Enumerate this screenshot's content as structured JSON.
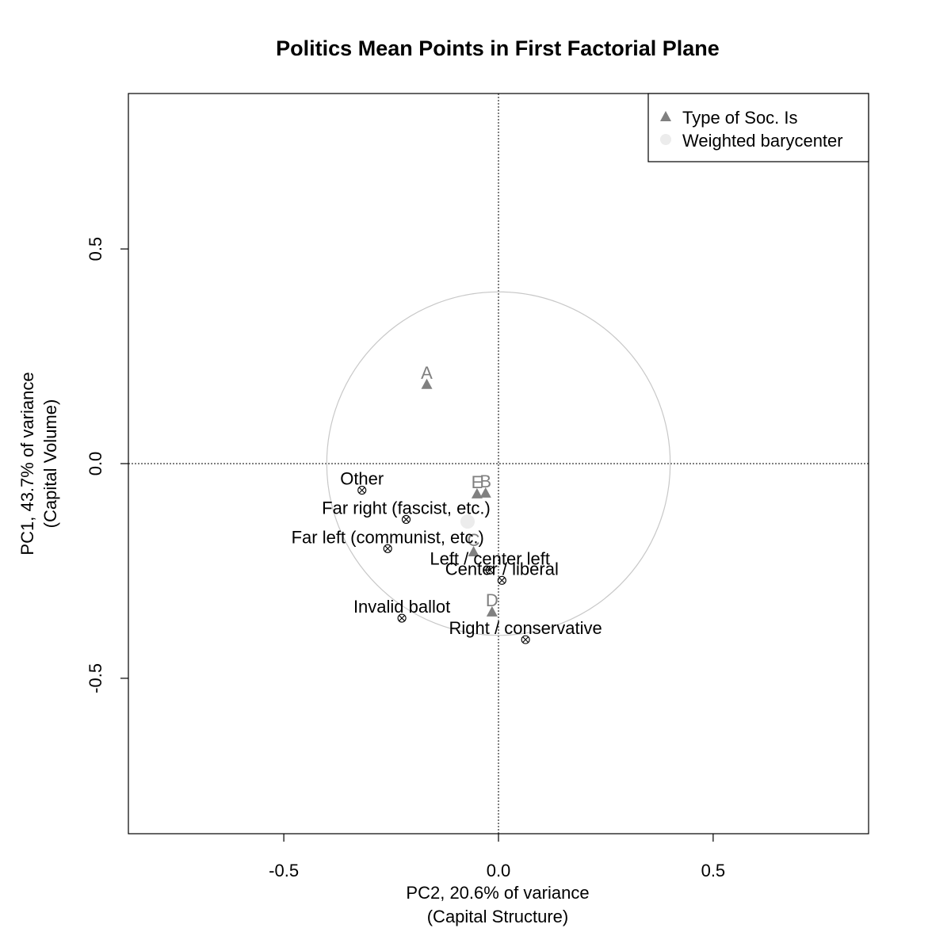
{
  "chart_data": {
    "type": "scatter",
    "title": "Politics Mean Points in First Factorial Plane",
    "xlabel": [
      "PC2, 20.6% of variance",
      "(Capital Structure)"
    ],
    "ylabel": [
      "PC1, 43.7% of variance",
      "(Capital Volume)"
    ],
    "xlim": [
      -0.862,
      0.862
    ],
    "ylim": [
      -0.862,
      0.862
    ],
    "xticks": [
      -0.5,
      0.0,
      0.5
    ],
    "yticks": [
      -0.5,
      0.0,
      0.5
    ],
    "xtick_labels": [
      "-0.5",
      "0.0",
      "0.5"
    ],
    "ytick_labels": [
      "-0.5",
      "0.0",
      "0.5"
    ],
    "grid": false,
    "reference_lines": {
      "x": 0,
      "y": 0,
      "style": "dotted"
    },
    "circle": {
      "center": [
        0,
        0
      ],
      "radius": 0.4,
      "color": "#c8c8c8"
    },
    "legend": {
      "position": "top-right",
      "entries": [
        {
          "label": "Type of Soc. Is",
          "marker": "triangle",
          "color": "#808080"
        },
        {
          "label": "Weighted barycenter",
          "marker": "circle",
          "color": "#ececec"
        }
      ]
    },
    "series": [
      {
        "name": "Type of Soc. Is",
        "marker": "triangle",
        "color": "#808080",
        "points": [
          {
            "label": "A",
            "x": -0.167,
            "y": 0.185
          },
          {
            "label": "E",
            "x": -0.05,
            "y": -0.07
          },
          {
            "label": "B",
            "x": -0.03,
            "y": -0.068
          },
          {
            "label": "C",
            "x": -0.058,
            "y": -0.205
          },
          {
            "label": "D",
            "x": -0.015,
            "y": -0.345
          }
        ]
      },
      {
        "name": "Politics",
        "marker": "circle-x",
        "color": "#000000",
        "points": [
          {
            "label": "Other",
            "x": -0.318,
            "y": -0.062
          },
          {
            "label": "Far right (fascist, etc.)",
            "x": -0.215,
            "y": -0.13
          },
          {
            "label": "Far left (communist, etc.)",
            "x": -0.258,
            "y": -0.198
          },
          {
            "label": "Left / center left",
            "x": -0.02,
            "y": -0.248
          },
          {
            "label": "Center / liberal",
            "x": 0.008,
            "y": -0.272
          },
          {
            "label": "Invalid ballot",
            "x": -0.225,
            "y": -0.36
          },
          {
            "label": "Right / conservative",
            "x": 0.063,
            "y": -0.41
          }
        ]
      },
      {
        "name": "Weighted barycenter",
        "marker": "circle",
        "color": "#ececec",
        "points": [
          {
            "label": "",
            "x": -0.072,
            "y": -0.135
          }
        ]
      }
    ]
  }
}
